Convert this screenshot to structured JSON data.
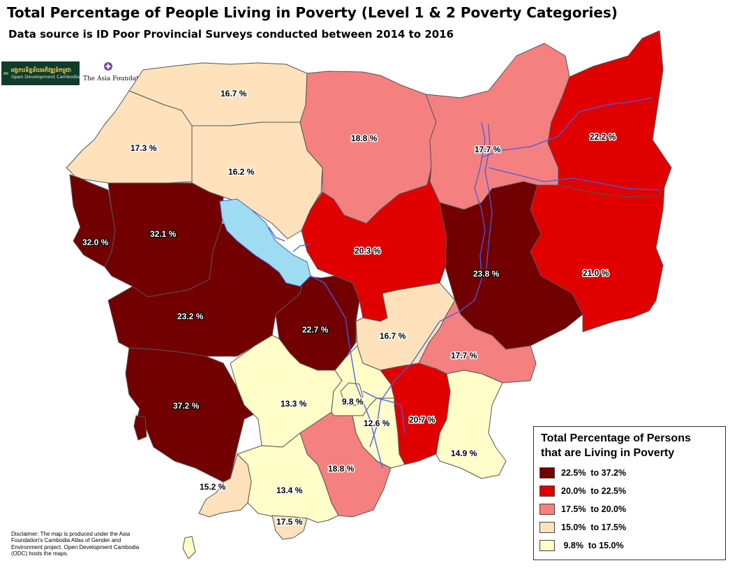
{
  "header": {
    "title": "Total Percentage of People Living in Poverty  (Level 1 & 2 Poverty Categories)",
    "subtitle": "Data source is ID Poor Provincial Surveys conducted between 2014 to 2016"
  },
  "logos": {
    "odc_khmer": "អង្គការទិន្នន័យអភិវឌ្ឍន៍កម្ពុជា",
    "odc_name": "Open Development Cambodia",
    "taf_name": "The Asia Foundation"
  },
  "colors": {
    "dark_red": "#720000",
    "red": "#e00000",
    "pink": "#f58080",
    "tan": "#ffe2bc",
    "light_yellow": "#fffdc8",
    "lake": "#9edcf2",
    "river": "#4060e0"
  },
  "regions": [
    {
      "label": "16.7 %",
      "value": 16.7,
      "category": "tan"
    },
    {
      "label": "17.3 %",
      "value": 17.3,
      "category": "tan"
    },
    {
      "label": "16.2 %",
      "value": 16.2,
      "category": "tan"
    },
    {
      "label": "18.8 %",
      "value": 18.8,
      "category": "pink"
    },
    {
      "label": "17.7 %",
      "value": 17.7,
      "category": "pink"
    },
    {
      "label": "22.2 %",
      "value": 22.2,
      "category": "red"
    },
    {
      "label": "32.0 %",
      "value": 32.0,
      "category": "dark_red"
    },
    {
      "label": "32.1 %",
      "value": 32.1,
      "category": "dark_red"
    },
    {
      "label": "20.3 %",
      "value": 20.3,
      "category": "red"
    },
    {
      "label": "23.8 %",
      "value": 23.8,
      "category": "dark_red"
    },
    {
      "label": "21.0 %",
      "value": 21.0,
      "category": "red"
    },
    {
      "label": "23.2 %",
      "value": 23.2,
      "category": "dark_red"
    },
    {
      "label": "22.7 %",
      "value": 22.7,
      "category": "dark_red"
    },
    {
      "label": "16.7 %",
      "value": 16.7,
      "category": "tan"
    },
    {
      "label": "17.7 %",
      "value": 17.7,
      "category": "pink"
    },
    {
      "label": "37.2 %",
      "value": 37.2,
      "category": "dark_red"
    },
    {
      "label": "13.3 %",
      "value": 13.3,
      "category": "light_yellow"
    },
    {
      "label": "9.8 %",
      "value": 9.8,
      "category": "light_yellow"
    },
    {
      "label": "12.6 %",
      "value": 12.6,
      "category": "light_yellow"
    },
    {
      "label": "20.7 %",
      "value": 20.7,
      "category": "red"
    },
    {
      "label": "14.9 %",
      "value": 14.9,
      "category": "light_yellow"
    },
    {
      "label": "18.8 %",
      "value": 18.8,
      "category": "pink"
    },
    {
      "label": "15.2 %",
      "value": 15.2,
      "category": "tan"
    },
    {
      "label": "13.4 %",
      "value": 13.4,
      "category": "light_yellow"
    },
    {
      "label": "17.5 %",
      "value": 17.5,
      "category": "tan"
    }
  ],
  "legend": {
    "title_line1": "Total Percentage of Persons",
    "title_line2": "that are Living in Poverty",
    "items": [
      {
        "label": "22.5%  to 37.2%",
        "color": "#720000"
      },
      {
        "label": "20.0%  to 22.5%",
        "color": "#e00000"
      },
      {
        "label": "17.5%  to 20.0%",
        "color": "#f58080"
      },
      {
        "label": "15.0%  to 17.5%",
        "color": "#ffe2bc"
      },
      {
        "label": " 9.8%  to 15.0%",
        "color": "#fffdc8"
      }
    ]
  },
  "disclaimer": "Disclaimer: The map is produced under the Asia Foundation's Cambodia Atlas of Gender and Environment project. Open Development Cambodia (ODC) hosts the maps."
}
